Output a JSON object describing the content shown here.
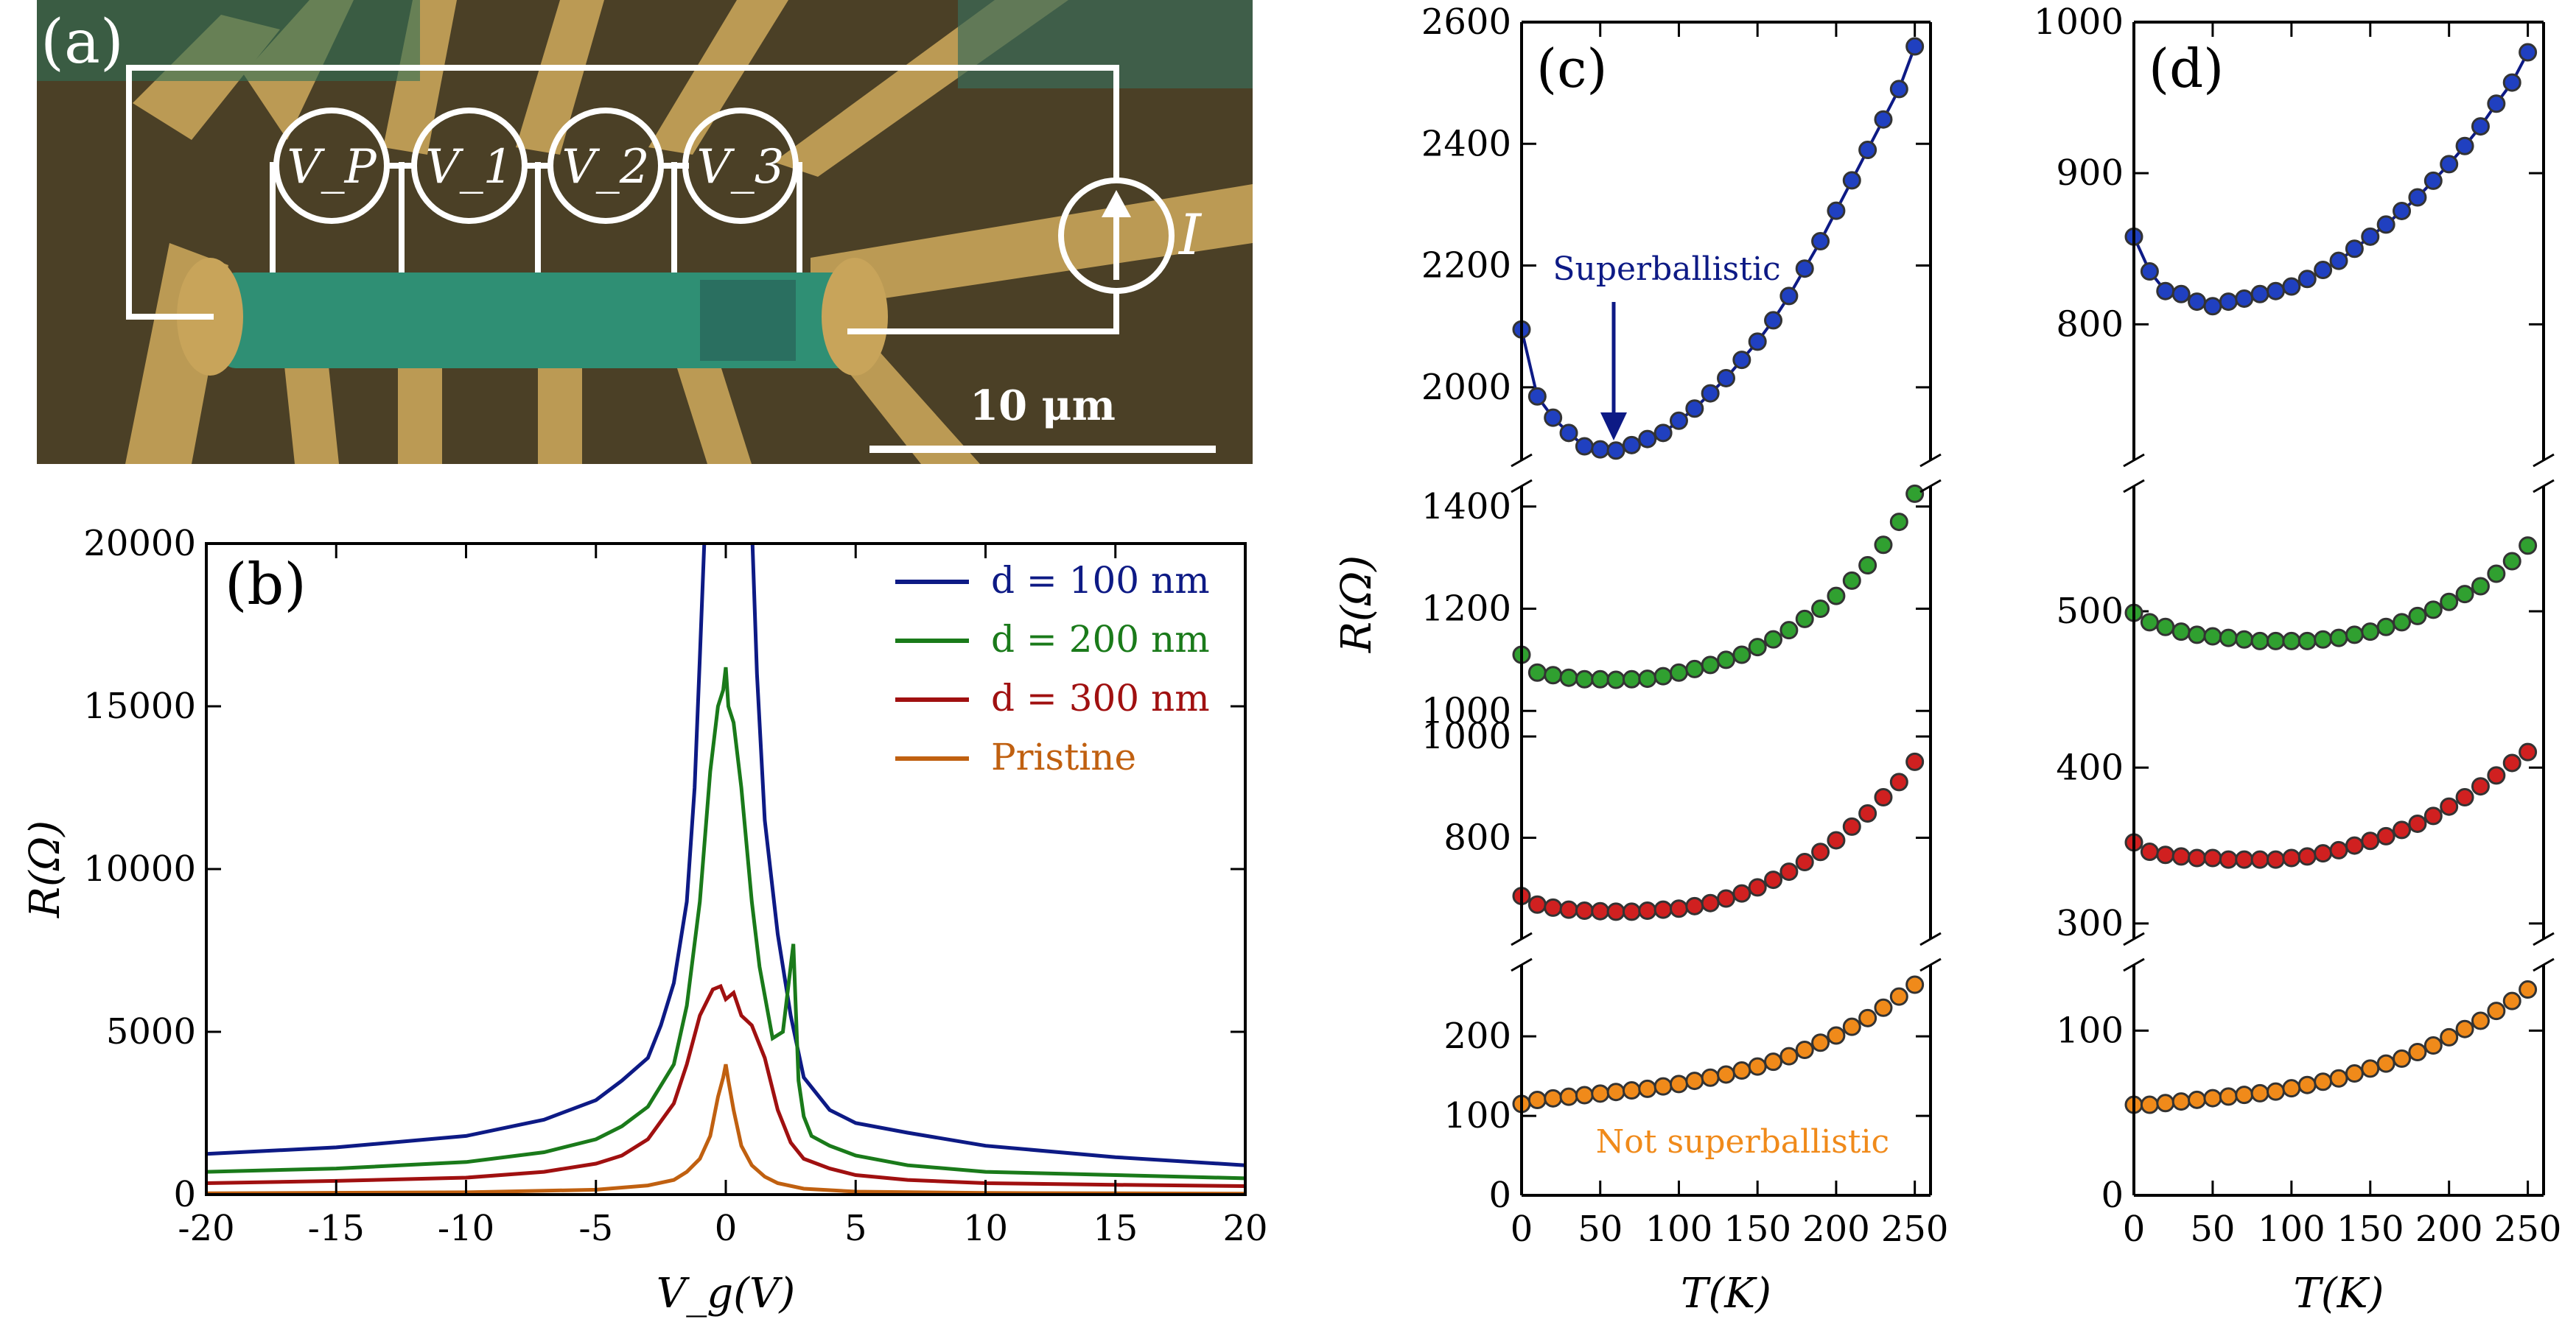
{
  "panel_a": {
    "label": "(a)",
    "probes": [
      "V_P",
      "V_1",
      "V_2",
      "V_3"
    ],
    "current_label": "I",
    "scalebar": "10 μm"
  },
  "chart_data": [
    {
      "id": "b",
      "type": "line",
      "panel_label": "(b)",
      "xlabel": "V_g(V)",
      "ylabel": "R(Ω)",
      "xlim": [
        -20,
        20
      ],
      "ylim": [
        0,
        20000
      ],
      "xticks": [
        -20,
        -15,
        -10,
        -5,
        0,
        5,
        10,
        15,
        20
      ],
      "yticks": [
        0,
        5000,
        10000,
        15000,
        20000
      ],
      "legend_position": "top-right",
      "series": [
        {
          "name": "d = 100 nm",
          "color": "#0d1a85",
          "x": [
            -20,
            -15,
            -10,
            -7,
            -5,
            -4,
            -3,
            -2.5,
            -2,
            -1.5,
            -1.2,
            -1.0,
            -0.8,
            -0.6,
            -0.4,
            0,
            0.5,
            0.8,
            1.0,
            1.2,
            1.5,
            2,
            2.5,
            3,
            4,
            5,
            7,
            10,
            15,
            20
          ],
          "y": [
            1250,
            1450,
            1800,
            2300,
            2900,
            3500,
            4200,
            5200,
            6500,
            9000,
            12500,
            16500,
            20600,
            20600,
            20600,
            20600,
            20600,
            20600,
            20600,
            16000,
            11500,
            8000,
            5500,
            3600,
            2600,
            2200,
            1900,
            1500,
            1150,
            900
          ]
        },
        {
          "name": "d = 200 nm",
          "color": "#1a7a1a",
          "x": [
            -20,
            -15,
            -10,
            -7,
            -5,
            -4,
            -3,
            -2,
            -1.5,
            -1.0,
            -0.6,
            -0.3,
            -0.1,
            0,
            0.1,
            0.3,
            0.6,
            1.0,
            1.3,
            1.8,
            2.2,
            2.6,
            2.8,
            3.0,
            3.3,
            4,
            5,
            7,
            10,
            15,
            20
          ],
          "y": [
            700,
            800,
            1000,
            1300,
            1700,
            2100,
            2700,
            4000,
            5800,
            9000,
            13000,
            15000,
            15500,
            16200,
            15000,
            14500,
            12500,
            9000,
            7000,
            4800,
            5000,
            7700,
            3500,
            2400,
            1800,
            1500,
            1200,
            900,
            700,
            600,
            500
          ]
        },
        {
          "name": "d = 300 nm",
          "color": "#a01010",
          "x": [
            -20,
            -15,
            -10,
            -7,
            -5,
            -4,
            -3,
            -2,
            -1.5,
            -1,
            -0.5,
            -0.2,
            0,
            0.3,
            0.6,
            1,
            1.5,
            2,
            2.5,
            3,
            4,
            5,
            7,
            10,
            15,
            20
          ],
          "y": [
            350,
            420,
            520,
            700,
            950,
            1200,
            1700,
            2800,
            4000,
            5500,
            6300,
            6400,
            6000,
            6200,
            5500,
            5200,
            4200,
            2600,
            1600,
            1100,
            800,
            600,
            450,
            350,
            300,
            260
          ]
        },
        {
          "name": "Pristine",
          "color": "#c06010",
          "x": [
            -20,
            -10,
            -5,
            -3,
            -2,
            -1.5,
            -1,
            -0.6,
            -0.3,
            -0.1,
            0,
            0.1,
            0.3,
            0.6,
            1,
            1.5,
            2,
            3,
            5,
            10,
            20
          ],
          "y": [
            40,
            70,
            150,
            280,
            450,
            700,
            1100,
            1800,
            3000,
            3600,
            4000,
            3500,
            2600,
            1500,
            900,
            550,
            350,
            180,
            90,
            50,
            30
          ]
        }
      ]
    },
    {
      "id": "c",
      "type": "scatter",
      "panel_label": "(c)",
      "xlabel": "T(K)",
      "ylabel": "R(Ω)",
      "xlim": [
        0,
        260
      ],
      "xticks": [
        0,
        50,
        100,
        150,
        200,
        250
      ],
      "subplots": [
        {
          "ylim": [
            1880,
            2600
          ],
          "yticks": [
            2000,
            2200,
            2400,
            2600
          ],
          "color": "#2040c0",
          "x": [
            0,
            10,
            20,
            30,
            40,
            50,
            60,
            70,
            80,
            90,
            100,
            110,
            120,
            130,
            140,
            150,
            160,
            170,
            180,
            190,
            200,
            210,
            220,
            230,
            240,
            250
          ],
          "y": [
            2095,
            1985,
            1950,
            1925,
            1903,
            1898,
            1896,
            1905,
            1915,
            1925,
            1945,
            1965,
            1990,
            2015,
            2045,
            2075,
            2110,
            2150,
            2195,
            2240,
            2290,
            2340,
            2390,
            2440,
            2490,
            2560
          ]
        },
        {
          "ylim": [
            950,
            1440
          ],
          "yticks": [
            1000,
            1200,
            1400
          ],
          "color": "#30a030",
          "x": [
            0,
            10,
            20,
            30,
            40,
            50,
            60,
            70,
            80,
            90,
            100,
            110,
            120,
            130,
            140,
            150,
            160,
            170,
            180,
            190,
            200,
            210,
            220,
            230,
            240,
            250
          ],
          "y": [
            1110,
            1075,
            1070,
            1065,
            1062,
            1062,
            1061,
            1062,
            1063,
            1068,
            1075,
            1082,
            1090,
            1100,
            1110,
            1125,
            1140,
            1158,
            1180,
            1200,
            1225,
            1255,
            1285,
            1325,
            1370,
            1425
          ]
        },
        {
          "ylim": [
            600,
            1000
          ],
          "yticks": [
            800,
            1000
          ],
          "color": "#d02020",
          "x": [
            0,
            10,
            20,
            30,
            40,
            50,
            60,
            70,
            80,
            90,
            100,
            110,
            120,
            130,
            140,
            150,
            160,
            170,
            180,
            190,
            200,
            210,
            220,
            230,
            240,
            250
          ],
          "y": [
            685,
            668,
            662,
            658,
            656,
            655,
            654,
            654,
            656,
            658,
            660,
            665,
            671,
            680,
            690,
            702,
            717,
            733,
            752,
            772,
            795,
            822,
            848,
            880,
            910,
            950
          ]
        },
        {
          "ylim": [
            0,
            290
          ],
          "yticks": [
            0,
            100,
            200
          ],
          "color": "#f08a1a",
          "x": [
            0,
            10,
            20,
            30,
            40,
            50,
            60,
            70,
            80,
            90,
            100,
            110,
            120,
            130,
            140,
            150,
            160,
            170,
            180,
            190,
            200,
            210,
            220,
            230,
            240,
            250
          ],
          "y": [
            115,
            120,
            122,
            124,
            126,
            128,
            130,
            132,
            134,
            137,
            140,
            144,
            148,
            152,
            157,
            162,
            168,
            175,
            183,
            192,
            201,
            212,
            223,
            236,
            250,
            265
          ]
        }
      ],
      "annotations": {
        "superballistic": "Superballistic",
        "not_superballistic": "Not superballistic"
      }
    },
    {
      "id": "d",
      "type": "scatter",
      "panel_label": "(d)",
      "xlabel": "T(K)",
      "xlim": [
        0,
        260
      ],
      "xticks": [
        0,
        50,
        100,
        150,
        200,
        250
      ],
      "subplots": [
        {
          "ylim": [
            710,
            1000
          ],
          "yticks": [
            800,
            900,
            1000
          ],
          "color": "#2040c0",
          "x": [
            0,
            10,
            20,
            30,
            40,
            50,
            60,
            70,
            80,
            90,
            100,
            110,
            120,
            130,
            140,
            150,
            160,
            170,
            180,
            190,
            200,
            210,
            220,
            230,
            240,
            250
          ],
          "y": [
            858,
            835,
            822,
            820,
            815,
            812,
            815,
            817,
            820,
            822,
            825,
            830,
            836,
            842,
            850,
            858,
            866,
            875,
            884,
            895,
            906,
            918,
            931,
            946,
            960,
            980
          ]
        },
        {
          "ylim": [
            420,
            580
          ],
          "yticks": [
            500
          ],
          "color": "#30a030",
          "x": [
            0,
            10,
            20,
            30,
            40,
            50,
            60,
            70,
            80,
            90,
            100,
            110,
            120,
            130,
            140,
            150,
            160,
            170,
            180,
            190,
            200,
            210,
            220,
            230,
            240,
            250
          ],
          "y": [
            499,
            493,
            490,
            487,
            485,
            484,
            483,
            482,
            481,
            481,
            481,
            481,
            482,
            483,
            485,
            487,
            490,
            493,
            497,
            501,
            506,
            511,
            516,
            524,
            532,
            542
          ]
        },
        {
          "ylim": [
            290,
            420
          ],
          "yticks": [
            300,
            400
          ],
          "color": "#d02020",
          "x": [
            0,
            10,
            20,
            30,
            40,
            50,
            60,
            70,
            80,
            90,
            100,
            110,
            120,
            130,
            140,
            150,
            160,
            170,
            180,
            190,
            200,
            210,
            220,
            230,
            240,
            250
          ],
          "y": [
            352,
            346,
            344,
            343,
            342,
            342,
            341,
            341,
            341,
            341,
            342,
            343,
            345,
            347,
            350,
            353,
            356,
            360,
            364,
            369,
            375,
            381,
            388,
            395,
            403,
            410
          ]
        },
        {
          "ylim": [
            0,
            140
          ],
          "yticks": [
            0,
            100
          ],
          "color": "#f08a1a",
          "x": [
            0,
            10,
            20,
            30,
            40,
            50,
            60,
            70,
            80,
            90,
            100,
            110,
            120,
            130,
            140,
            150,
            160,
            170,
            180,
            190,
            200,
            210,
            220,
            230,
            240,
            250
          ],
          "y": [
            55,
            55,
            56,
            57,
            58,
            59,
            60,
            61,
            62,
            63,
            65,
            67,
            69,
            71,
            74,
            77,
            80,
            83,
            87,
            91,
            96,
            101,
            106,
            112,
            118,
            125
          ]
        }
      ]
    }
  ]
}
